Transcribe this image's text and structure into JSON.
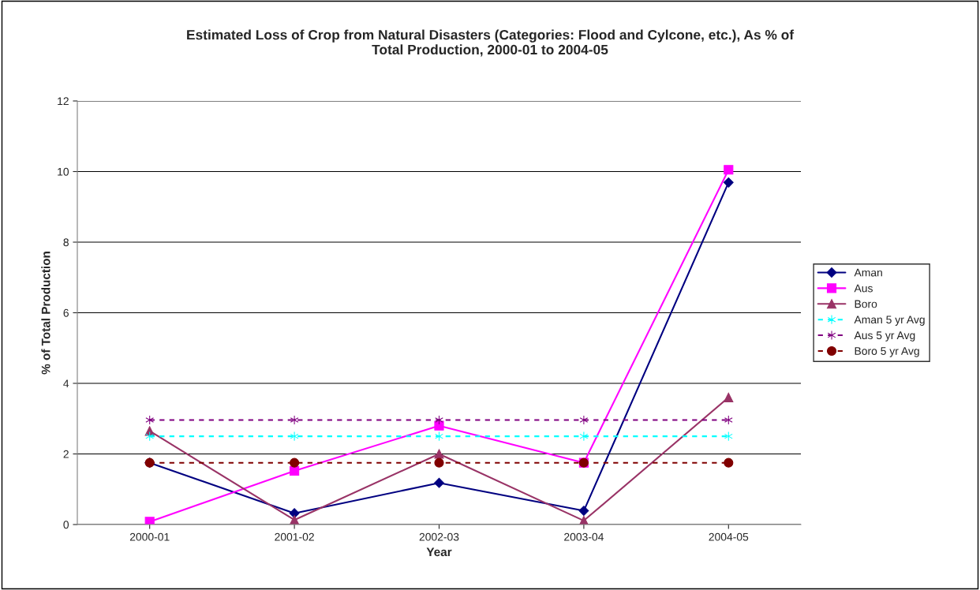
{
  "chart_data": {
    "type": "line",
    "title": "Estimated Loss of Crop from Natural Disasters (Categories: Flood and Cylcone, etc.), As % of\nTotal Production, 2000-01 to 2004-05",
    "xlabel": "Year",
    "ylabel": "% of Total Production",
    "categories": [
      "2000-01",
      "2001-02",
      "2002-03",
      "2003-04",
      "2004-05"
    ],
    "series": [
      {
        "name": "Aman",
        "color": "#000080",
        "marker": "diamond",
        "line_style": "solid",
        "values": [
          1.75,
          0.32,
          1.18,
          0.39,
          9.69
        ]
      },
      {
        "name": "Aus",
        "color": "#ff00ff",
        "marker": "square",
        "line_style": "solid",
        "values": [
          0.08,
          1.52,
          2.8,
          1.75,
          10.05
        ]
      },
      {
        "name": "Boro",
        "color": "#993366",
        "marker": "triangle",
        "line_style": "solid",
        "values": [
          2.65,
          0.13,
          2.0,
          0.11,
          3.6
        ]
      },
      {
        "name": "Aman 5 yr Avg",
        "color": "#00ffff",
        "marker": "cross",
        "line_style": "dashed",
        "values": [
          2.5,
          2.5,
          2.5,
          2.5,
          2.5
        ]
      },
      {
        "name": "Aus 5 yr Avg",
        "color": "#800080",
        "marker": "cross",
        "line_style": "dashed",
        "values": [
          2.96,
          2.96,
          2.96,
          2.96,
          2.96
        ]
      },
      {
        "name": "Boro 5 yr Avg",
        "color": "#800000",
        "marker": "circle",
        "line_style": "dashed",
        "values": [
          1.75,
          1.75,
          1.75,
          1.75,
          1.75
        ]
      }
    ],
    "ylim": [
      0,
      12
    ],
    "yticks": [
      0,
      2,
      4,
      6,
      8,
      10,
      12
    ],
    "grid": "y",
    "legend": "right"
  }
}
